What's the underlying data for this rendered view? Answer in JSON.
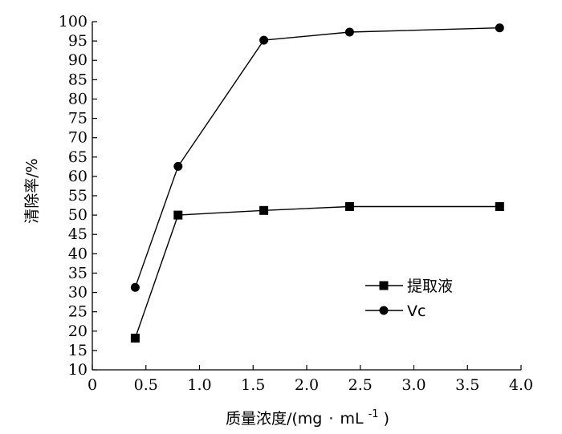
{
  "chart_data": {
    "type": "line",
    "title": "",
    "xlabel_main": "质量浓度/(mg",
    "xlabel_dot": "·",
    "xlabel_unit": "mL",
    "xlabel_sup": "-1",
    "xlabel_close": ")",
    "ylabel": "清除率/%",
    "xlim": [
      0,
      4.0
    ],
    "ylim": [
      10,
      100
    ],
    "xticks": [
      "0",
      "0.5",
      "1.0",
      "1.5",
      "2.0",
      "2.5",
      "3.0",
      "3.5",
      "4.0"
    ],
    "xtick_values": [
      0,
      0.5,
      1.0,
      1.5,
      2.0,
      2.5,
      3.0,
      3.5,
      4.0
    ],
    "yticks": [
      "10",
      "15",
      "20",
      "25",
      "30",
      "35",
      "40",
      "45",
      "50",
      "55",
      "60",
      "65",
      "70",
      "75",
      "80",
      "85",
      "90",
      "95",
      "100"
    ],
    "ytick_values": [
      10,
      15,
      20,
      25,
      30,
      35,
      40,
      45,
      50,
      55,
      60,
      65,
      70,
      75,
      80,
      85,
      90,
      95,
      100
    ],
    "grid": false,
    "legend_position": "right-middle",
    "series": [
      {
        "name": "提取液",
        "marker": "square",
        "x": [
          0.4,
          0.8,
          1.6,
          2.4,
          3.8
        ],
        "y": [
          18.2,
          50.0,
          51.2,
          52.2,
          52.2
        ]
      },
      {
        "name": "Vc",
        "marker": "circle",
        "x": [
          0.4,
          0.8,
          1.6,
          2.4,
          3.8
        ],
        "y": [
          31.3,
          62.6,
          95.2,
          97.3,
          98.4
        ]
      }
    ]
  }
}
